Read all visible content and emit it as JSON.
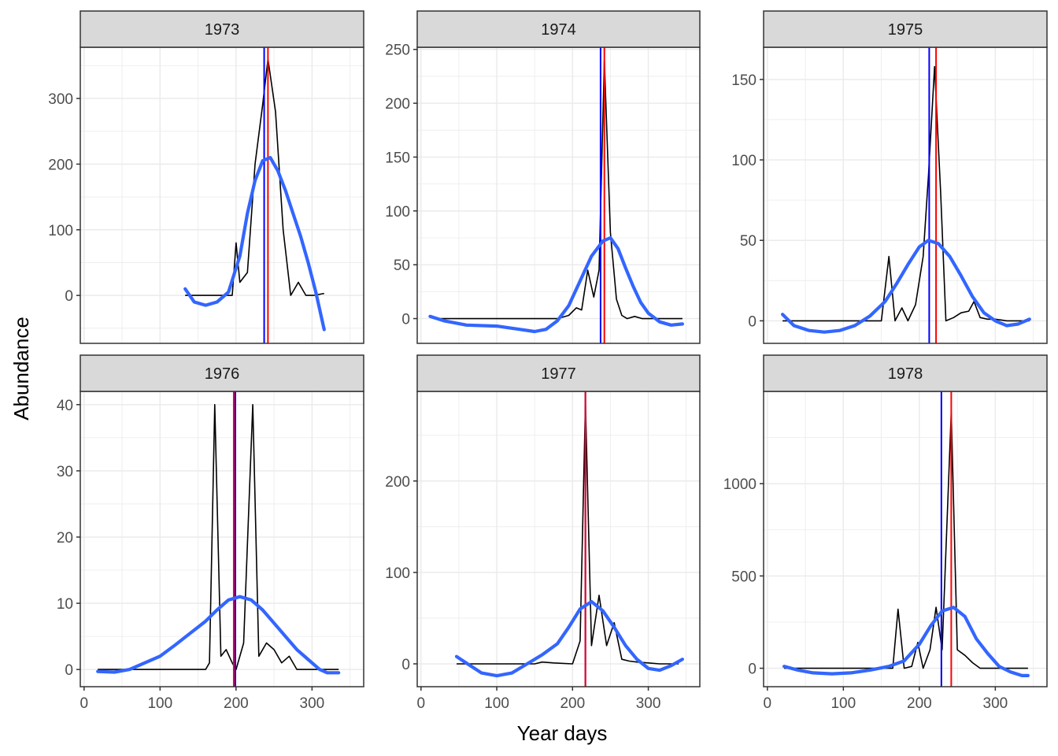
{
  "figure": {
    "xlabel": "Year days",
    "ylabel": "Abundance",
    "colors": {
      "observed_line": "#000000",
      "smooth_line": "#3366ff",
      "blue_vline": "#0000ff",
      "red_vline": "#ff0000",
      "strip_fill": "#d9d9d9",
      "grid": "#ebebeb",
      "panel_border": "#333333",
      "tick_text": "#4d4d4d"
    }
  },
  "chart_data": [
    {
      "type": "line",
      "title": "1973",
      "xlim": [
        -5,
        368
      ],
      "ylim": [
        -73,
        378
      ],
      "xticks": [
        0,
        100,
        200,
        300
      ],
      "yticks": [
        0,
        100,
        200,
        300
      ],
      "show_x_axis": false,
      "vlines": {
        "blue": 237,
        "red": 242
      },
      "series": [
        {
          "values": [
            [
              133,
              0
            ],
            [
              170,
              0
            ],
            [
              195,
              0
            ],
            [
              200,
              80
            ],
            [
              205,
              20
            ],
            [
              215,
              35
            ],
            [
              225,
              200
            ],
            [
              235,
              290
            ],
            [
              242,
              360
            ],
            [
              252,
              280
            ],
            [
              262,
              100
            ],
            [
              272,
              0
            ],
            [
              282,
              20
            ],
            [
              292,
              0
            ],
            [
              302,
              0
            ],
            [
              316,
              3
            ]
          ]
        },
        {
          "values": [
            [
              133,
              10
            ],
            [
              145,
              -10
            ],
            [
              160,
              -15
            ],
            [
              175,
              -10
            ],
            [
              190,
              5
            ],
            [
              205,
              60
            ],
            [
              215,
              125
            ],
            [
              225,
              175
            ],
            [
              235,
              205
            ],
            [
              245,
              210
            ],
            [
              255,
              190
            ],
            [
              265,
              160
            ],
            [
              275,
              125
            ],
            [
              285,
              90
            ],
            [
              295,
              50
            ],
            [
              305,
              5
            ],
            [
              316,
              -52
            ]
          ]
        }
      ]
    },
    {
      "type": "line",
      "title": "1974",
      "xlim": [
        -5,
        368
      ],
      "ylim": [
        -23,
        252
      ],
      "xticks": [
        0,
        100,
        200,
        300
      ],
      "yticks": [
        0,
        50,
        100,
        150,
        200,
        250
      ],
      "show_x_axis": false,
      "vlines": {
        "blue": 237,
        "red": 242
      },
      "series": [
        {
          "values": [
            [
              12,
              3
            ],
            [
              20,
              0
            ],
            [
              100,
              0
            ],
            [
              180,
              0
            ],
            [
              195,
              3
            ],
            [
              205,
              10
            ],
            [
              212,
              8
            ],
            [
              220,
              45
            ],
            [
              228,
              20
            ],
            [
              235,
              45
            ],
            [
              242,
              240
            ],
            [
              250,
              80
            ],
            [
              258,
              18
            ],
            [
              265,
              3
            ],
            [
              272,
              0
            ],
            [
              282,
              2
            ],
            [
              292,
              0
            ],
            [
              345,
              0
            ]
          ]
        },
        {
          "values": [
            [
              12,
              2
            ],
            [
              30,
              -2
            ],
            [
              60,
              -6
            ],
            [
              100,
              -7
            ],
            [
              130,
              -10
            ],
            [
              150,
              -12
            ],
            [
              165,
              -10
            ],
            [
              180,
              -2
            ],
            [
              195,
              12
            ],
            [
              210,
              35
            ],
            [
              225,
              58
            ],
            [
              240,
              72
            ],
            [
              250,
              75
            ],
            [
              260,
              65
            ],
            [
              270,
              47
            ],
            [
              280,
              30
            ],
            [
              290,
              15
            ],
            [
              300,
              5
            ],
            [
              315,
              -3
            ],
            [
              330,
              -6
            ],
            [
              345,
              -5
            ]
          ]
        }
      ]
    },
    {
      "type": "line",
      "title": "1975",
      "xlim": [
        -5,
        368
      ],
      "ylim": [
        -14,
        170
      ],
      "xticks": [
        0,
        100,
        200,
        300
      ],
      "yticks": [
        0,
        50,
        100,
        150
      ],
      "show_x_axis": false,
      "vlines": {
        "blue": 213,
        "red": 222
      },
      "series": [
        {
          "values": [
            [
              20,
              0
            ],
            [
              120,
              0
            ],
            [
              150,
              0
            ],
            [
              160,
              40
            ],
            [
              168,
              0
            ],
            [
              177,
              8
            ],
            [
              185,
              0
            ],
            [
              195,
              10
            ],
            [
              205,
              40
            ],
            [
              212,
              90
            ],
            [
              220,
              158
            ],
            [
              228,
              80
            ],
            [
              235,
              0
            ],
            [
              245,
              2
            ],
            [
              255,
              5
            ],
            [
              265,
              6
            ],
            [
              272,
              12
            ],
            [
              280,
              2
            ],
            [
              290,
              1
            ],
            [
              300,
              1
            ],
            [
              315,
              0
            ],
            [
              345,
              0
            ]
          ]
        },
        {
          "values": [
            [
              20,
              4
            ],
            [
              35,
              -3
            ],
            [
              55,
              -6
            ],
            [
              75,
              -7
            ],
            [
              95,
              -6
            ],
            [
              115,
              -3
            ],
            [
              135,
              3
            ],
            [
              155,
              12
            ],
            [
              170,
              23
            ],
            [
              185,
              35
            ],
            [
              200,
              46
            ],
            [
              212,
              50
            ],
            [
              225,
              48
            ],
            [
              240,
              40
            ],
            [
              255,
              28
            ],
            [
              270,
              15
            ],
            [
              285,
              5
            ],
            [
              300,
              0
            ],
            [
              315,
              -3
            ],
            [
              330,
              -2
            ],
            [
              345,
              1
            ]
          ]
        }
      ]
    },
    {
      "type": "line",
      "title": "1976",
      "xlim": [
        -5,
        368
      ],
      "ylim": [
        -2.6,
        42
      ],
      "xticks": [
        0,
        100,
        200,
        300
      ],
      "yticks": [
        0,
        10,
        20,
        30,
        40
      ],
      "show_x_axis": true,
      "vlines": {
        "blue": 199,
        "red": 197
      },
      "series": [
        {
          "values": [
            [
              18,
              0
            ],
            [
              100,
              0
            ],
            [
              160,
              0
            ],
            [
              165,
              1
            ],
            [
              172,
              40
            ],
            [
              180,
              2
            ],
            [
              187,
              3
            ],
            [
              195,
              1
            ],
            [
              200,
              0
            ],
            [
              210,
              4
            ],
            [
              222,
              40
            ],
            [
              230,
              2
            ],
            [
              240,
              4
            ],
            [
              250,
              3
            ],
            [
              260,
              1
            ],
            [
              270,
              2
            ],
            [
              280,
              0
            ],
            [
              295,
              0
            ],
            [
              335,
              0
            ]
          ]
        },
        {
          "values": [
            [
              18,
              -0.3
            ],
            [
              40,
              -0.4
            ],
            [
              60,
              0
            ],
            [
              80,
              1
            ],
            [
              100,
              2
            ],
            [
              120,
              3.7
            ],
            [
              140,
              5.5
            ],
            [
              160,
              7.3
            ],
            [
              175,
              9
            ],
            [
              190,
              10.5
            ],
            [
              205,
              11
            ],
            [
              220,
              10.5
            ],
            [
              235,
              9
            ],
            [
              250,
              7
            ],
            [
              265,
              5
            ],
            [
              280,
              3
            ],
            [
              295,
              1.5
            ],
            [
              310,
              0
            ],
            [
              320,
              -0.5
            ],
            [
              335,
              -0.5
            ]
          ]
        }
      ]
    },
    {
      "type": "line",
      "title": "1977",
      "xlim": [
        -5,
        368
      ],
      "ylim": [
        -25,
        298
      ],
      "xticks": [
        0,
        100,
        200,
        300
      ],
      "yticks": [
        0,
        100,
        200
      ],
      "show_x_axis": true,
      "vlines": {
        "blue": 217,
        "red": 217
      },
      "series": [
        {
          "values": [
            [
              47,
              0
            ],
            [
              150,
              0
            ],
            [
              160,
              2
            ],
            [
              175,
              1
            ],
            [
              200,
              0
            ],
            [
              210,
              25
            ],
            [
              217,
              285
            ],
            [
              225,
              20
            ],
            [
              235,
              75
            ],
            [
              245,
              20
            ],
            [
              255,
              45
            ],
            [
              265,
              5
            ],
            [
              275,
              3
            ],
            [
              285,
              2
            ],
            [
              300,
              1
            ],
            [
              315,
              0
            ],
            [
              340,
              0
            ]
          ]
        },
        {
          "values": [
            [
              47,
              8
            ],
            [
              65,
              -2
            ],
            [
              80,
              -10
            ],
            [
              100,
              -13
            ],
            [
              120,
              -10
            ],
            [
              140,
              0
            ],
            [
              160,
              10
            ],
            [
              180,
              22
            ],
            [
              195,
              40
            ],
            [
              210,
              60
            ],
            [
              225,
              68
            ],
            [
              240,
              58
            ],
            [
              255,
              40
            ],
            [
              270,
              20
            ],
            [
              285,
              5
            ],
            [
              300,
              -5
            ],
            [
              315,
              -7
            ],
            [
              330,
              -2
            ],
            [
              345,
              5
            ]
          ]
        }
      ]
    },
    {
      "type": "line",
      "title": "1978",
      "xlim": [
        -5,
        368
      ],
      "ylim": [
        -100,
        1500
      ],
      "xticks": [
        0,
        100,
        200,
        300
      ],
      "yticks": [
        0,
        500,
        1000
      ],
      "show_x_axis": true,
      "vlines": {
        "blue": 229,
        "red": 242
      },
      "series": [
        {
          "values": [
            [
              22,
              0
            ],
            [
              120,
              0
            ],
            [
              165,
              0
            ],
            [
              172,
              320
            ],
            [
              180,
              0
            ],
            [
              190,
              10
            ],
            [
              198,
              140
            ],
            [
              205,
              0
            ],
            [
              214,
              100
            ],
            [
              222,
              330
            ],
            [
              230,
              100
            ],
            [
              242,
              1390
            ],
            [
              250,
              100
            ],
            [
              260,
              70
            ],
            [
              270,
              30
            ],
            [
              280,
              0
            ],
            [
              300,
              0
            ],
            [
              343,
              0
            ]
          ]
        },
        {
          "values": [
            [
              22,
              10
            ],
            [
              40,
              -10
            ],
            [
              60,
              -25
            ],
            [
              85,
              -30
            ],
            [
              110,
              -25
            ],
            [
              135,
              -10
            ],
            [
              160,
              10
            ],
            [
              180,
              40
            ],
            [
              200,
              130
            ],
            [
              215,
              230
            ],
            [
              230,
              310
            ],
            [
              245,
              330
            ],
            [
              260,
              280
            ],
            [
              275,
              160
            ],
            [
              290,
              80
            ],
            [
              305,
              10
            ],
            [
              320,
              -20
            ],
            [
              335,
              -40
            ],
            [
              343,
              -40
            ]
          ]
        }
      ]
    }
  ]
}
